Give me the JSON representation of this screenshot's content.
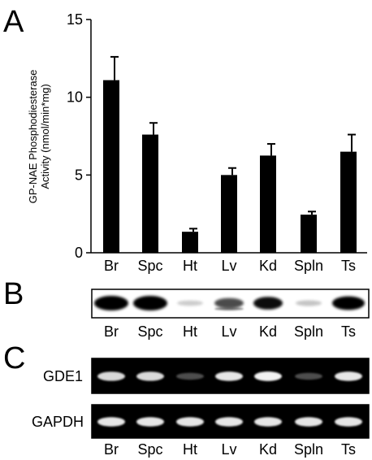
{
  "panels": {
    "a": "A",
    "b": "B",
    "c": "C"
  },
  "chart_data": {
    "type": "bar",
    "categories": [
      "Br",
      "Spc",
      "Ht",
      "Lv",
      "Kd",
      "Spln",
      "Ts"
    ],
    "values": [
      11.1,
      7.6,
      1.35,
      5.0,
      6.25,
      2.45,
      6.5
    ],
    "errors": [
      1.5,
      0.75,
      0.2,
      0.45,
      0.75,
      0.2,
      1.1
    ],
    "ylabel_line1": "GP-NAE Phosphodiesterase",
    "ylabel_line2": "Activity (nmol/min*mg)",
    "xlabel": "",
    "ylim": [
      0,
      15
    ],
    "yticks": [
      0,
      5,
      10,
      15
    ],
    "bar_color": "#000000"
  },
  "western": {
    "lane_labels": [
      "Br",
      "Spc",
      "Ht",
      "Lv",
      "Kd",
      "Spln",
      "Ts"
    ],
    "band_intensity": [
      1.0,
      1.0,
      0.05,
      0.55,
      0.8,
      0.08,
      0.9
    ]
  },
  "pcr": {
    "rows": [
      {
        "label": "GDE1",
        "intensity": [
          0.85,
          0.85,
          0.3,
          0.9,
          0.95,
          0.3,
          0.9
        ]
      },
      {
        "label": "GAPDH",
        "intensity": [
          0.9,
          0.9,
          0.9,
          0.9,
          0.9,
          0.9,
          0.9
        ]
      }
    ],
    "lane_labels": [
      "Br",
      "Spc",
      "Ht",
      "Lv",
      "Kd",
      "Spln",
      "Ts"
    ]
  }
}
